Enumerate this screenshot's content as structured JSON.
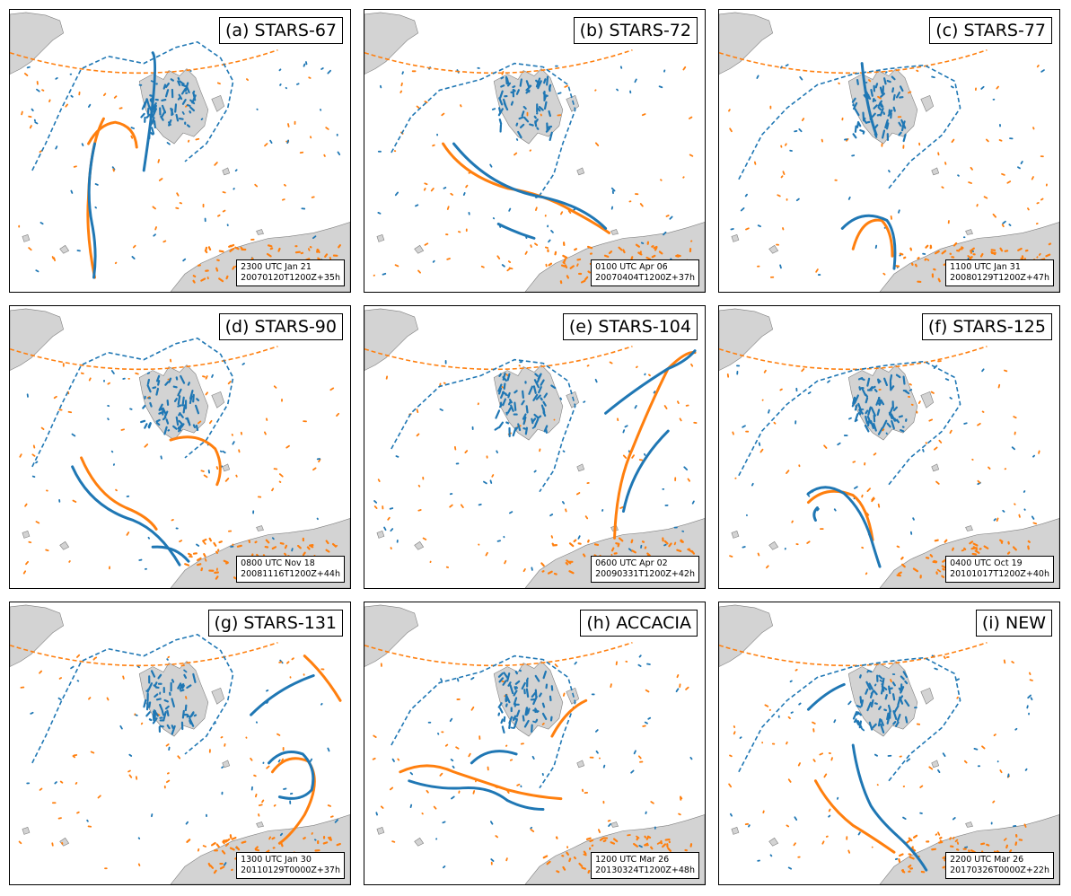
{
  "colors": {
    "front_a": "#1f77b4",
    "front_b": "#ff7f0e",
    "land": "#d3d3d3",
    "coast": "#7f7f7f"
  },
  "panels": [
    {
      "label": "(a) STARS-67",
      "time": "2300 UTC Jan 21",
      "run": "20070120T1200Z+35h"
    },
    {
      "label": "(b) STARS-72",
      "time": "0100 UTC Apr 06",
      "run": "20070404T1200Z+37h"
    },
    {
      "label": "(c) STARS-77",
      "time": "1100 UTC Jan 31",
      "run": "20080129T1200Z+47h"
    },
    {
      "label": "(d) STARS-90",
      "time": "0800 UTC Nov 18",
      "run": "20081116T1200Z+44h"
    },
    {
      "label": "(e) STARS-104",
      "time": "0600 UTC Apr 02",
      "run": "20090331T1200Z+42h"
    },
    {
      "label": "(f) STARS-125",
      "time": "0400 UTC Oct 19",
      "run": "20101017T1200Z+40h"
    },
    {
      "label": "(g) STARS-131",
      "time": "1300 UTC Jan 30",
      "run": "20110129T0000Z+37h"
    },
    {
      "label": "(h) ACCACIA",
      "time": "1200 UTC Mar 26",
      "run": "20130324T1200Z+48h"
    },
    {
      "label": "(i) NEW",
      "time": "2200 UTC Mar 26",
      "run": "20170326T0000Z+22h"
    }
  ]
}
